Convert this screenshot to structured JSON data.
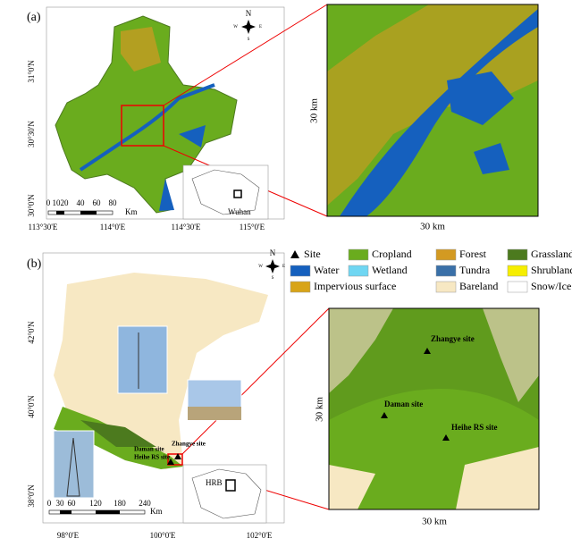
{
  "panel_a": {
    "label": "(a)",
    "lat_labels": [
      "31°0'N",
      "30°30'N",
      "30°0'N"
    ],
    "lon_labels": [
      "113°30'E",
      "114°0'E",
      "114°30'E",
      "115°0'E"
    ],
    "scale_labels": [
      "0",
      "10",
      "20",
      "40",
      "60",
      "80"
    ],
    "scale_unit": "Km",
    "compass": [
      "N",
      "S",
      "W",
      "E"
    ],
    "inset_label": "Wuhan",
    "zoom_width": "30 km",
    "zoom_height": "30 km"
  },
  "panel_b": {
    "label": "(b)",
    "lat_labels": [
      "42°0'N",
      "40°0'N",
      "38°0'N"
    ],
    "lon_labels": [
      "98°0'E",
      "100°0'E",
      "102°0'E"
    ],
    "scale_labels": [
      "0",
      "30",
      "60",
      "120",
      "180",
      "240"
    ],
    "scale_unit": "Km",
    "compass": [
      "N",
      "S",
      "W",
      "E"
    ],
    "inset_label": "HRB",
    "sites": [
      "Zhangye site",
      "Daman site",
      "Heihe RS site"
    ],
    "zoom_width": "30 km",
    "zoom_height": "30 km"
  },
  "legend": [
    {
      "label": "Site",
      "color": "#000000",
      "marker": "triangle"
    },
    {
      "label": "Cropland",
      "color": "#6aac1e",
      "marker": "rect"
    },
    {
      "label": "Forest",
      "color": "#d39a22",
      "marker": "rect"
    },
    {
      "label": "Grassland",
      "color": "#4c7a1e",
      "marker": "rect"
    },
    {
      "label": "Water",
      "color": "#1560be",
      "marker": "rect"
    },
    {
      "label": "Wetland",
      "color": "#6fd6f2",
      "marker": "rect"
    },
    {
      "label": "Tundra",
      "color": "#3a70a8",
      "marker": "rect"
    },
    {
      "label": "Shrubland",
      "color": "#f6ee00",
      "marker": "rect"
    },
    {
      "label": "Impervious surface",
      "color": "#d8a418",
      "marker": "rect"
    },
    {
      "label": "Bareland",
      "color": "#f7e8c3",
      "marker": "rect"
    },
    {
      "label": "Snow/Ice",
      "color": "#ffffff",
      "marker": "rect"
    }
  ]
}
